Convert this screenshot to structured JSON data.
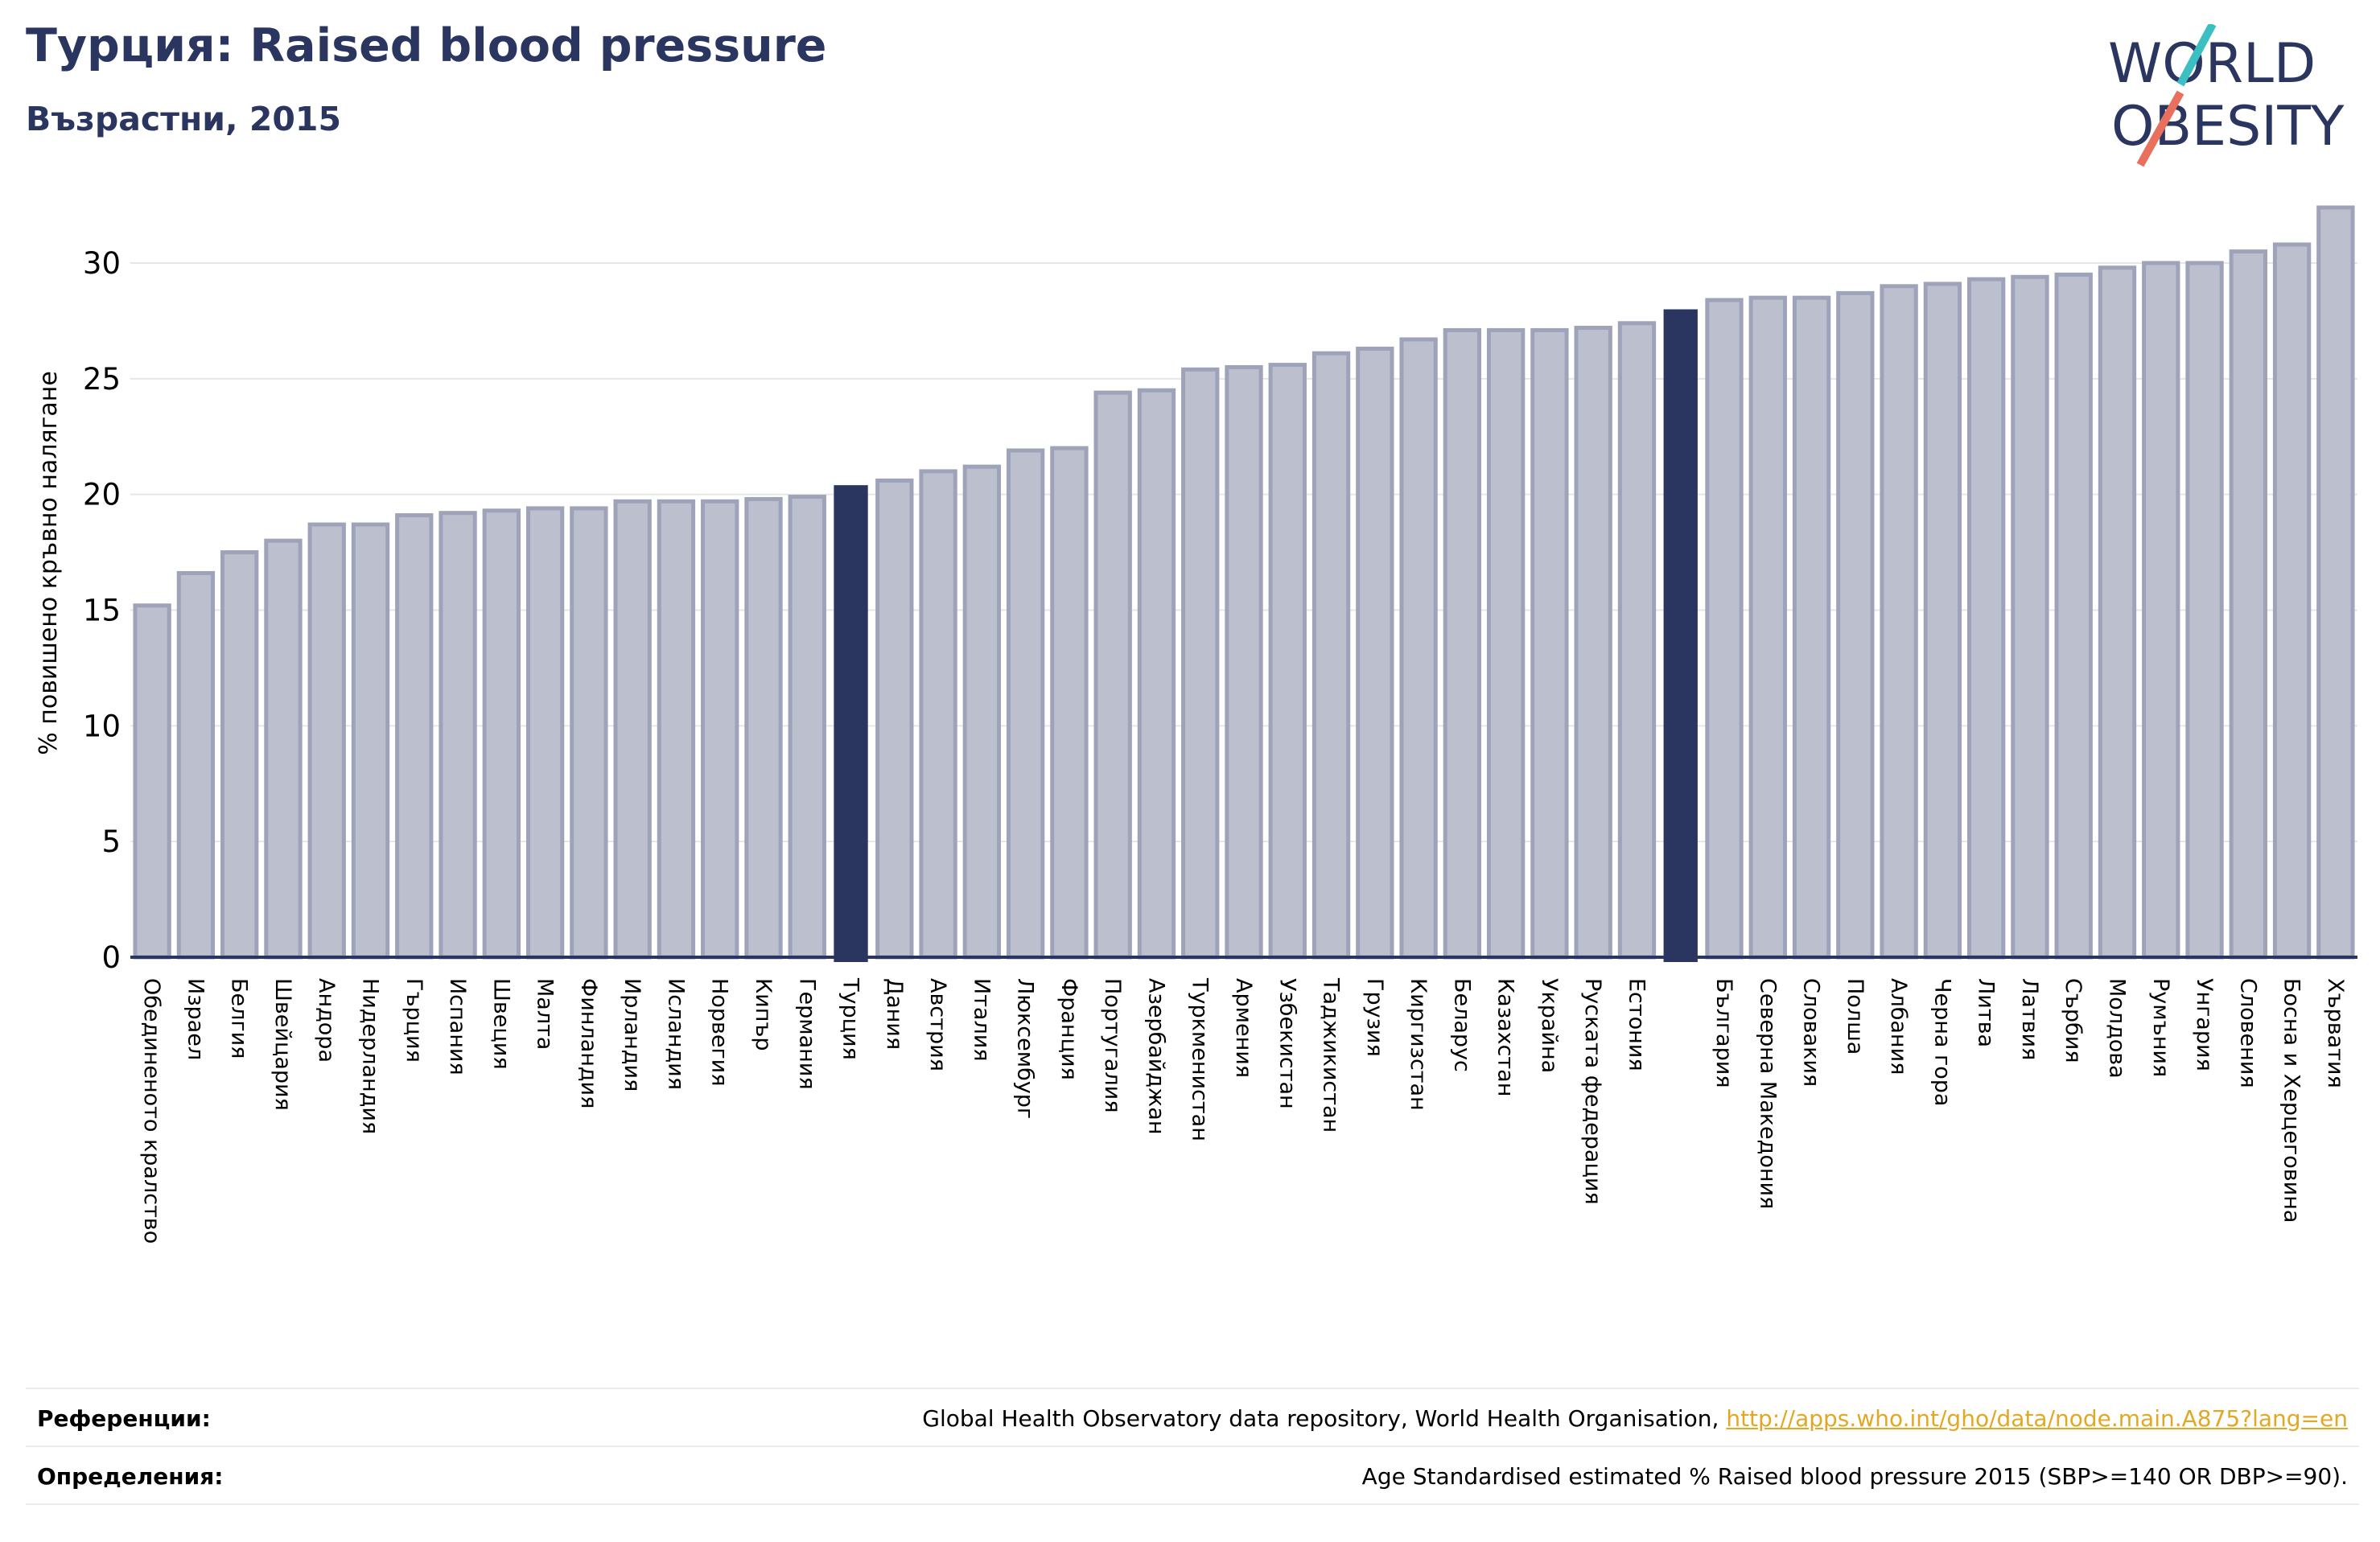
{
  "header": {
    "title": "Турция: Raised blood pressure",
    "subtitle": "Възрастни, 2015"
  },
  "logo": {
    "line1": "WORLD",
    "line2": "OBESITY",
    "colors": {
      "text": "#2b3660",
      "teal": "#3bbfc0",
      "coral": "#e8705d"
    }
  },
  "colors": {
    "bar_fill": "#bcbfcd",
    "bar_edge": "#9ea3b9",
    "highlight": "#2b3660",
    "axis": "#2b3660",
    "grid": "#e6e6e6",
    "link": "#e3a823"
  },
  "chart_data": {
    "type": "bar",
    "title": "Турция: Raised blood pressure",
    "subtitle": "Възрастни, 2015",
    "xlabel": "",
    "ylabel": "% повишено кръвно налягане",
    "ylim": [
      0,
      33
    ],
    "yticks": [
      0,
      5,
      10,
      15,
      20,
      25,
      30
    ],
    "grid": true,
    "categories": [
      "Обединеното кралство",
      "Израел",
      "Белгия",
      "Швейцария",
      "Андора",
      "Нидерландия",
      "Гърция",
      "Испания",
      "Швеция",
      "Малта",
      "Финландия",
      "Ирландия",
      "Исландия",
      "Норвегия",
      "Кипър",
      "Германия",
      "Турция",
      "Дания",
      "Австрия",
      "Италия",
      "Люксембург",
      "Франция",
      "Португалия",
      "Азербайджан",
      "Туркменистан",
      "Армения",
      "Узбекистан",
      "Таджикистан",
      "Грузия",
      "Киргизстан",
      "Беларус",
      "Казахстан",
      "Украйна",
      "Руската федерация",
      "Естония",
      "",
      "България",
      "Северна Македония",
      "Словакия",
      "Полша",
      "Албания",
      "Черна гора",
      "Литва",
      "Латвия",
      "Сърбия",
      "Молдова",
      "Румъния",
      "Унгария",
      "Словения",
      "Босна и Херцеговина",
      "Хърватия"
    ],
    "values": [
      15.2,
      16.6,
      17.5,
      18.0,
      18.7,
      18.7,
      19.1,
      19.2,
      19.3,
      19.4,
      19.4,
      19.7,
      19.7,
      19.7,
      19.8,
      19.9,
      20.4,
      20.6,
      21.0,
      21.2,
      21.9,
      22.0,
      24.4,
      24.5,
      25.4,
      25.5,
      25.6,
      26.1,
      26.3,
      26.7,
      27.1,
      27.1,
      27.1,
      27.2,
      27.4,
      28.0,
      28.4,
      28.5,
      28.5,
      28.7,
      29.0,
      29.1,
      29.3,
      29.4,
      29.5,
      29.8,
      30.0,
      30.0,
      30.5,
      30.8,
      32.4
    ],
    "highlighted": [
      "Турция",
      ""
    ]
  },
  "footer": {
    "references_label": "Референции:",
    "references_text": "Global Health Observatory data repository, World Health Organisation, ",
    "references_link": "http://apps.who.int/gho/data/node.main.A875?lang=en",
    "definitions_label": "Определения:",
    "definitions_text": "Age Standardised estimated % Raised blood pressure 2015 (SBP>=140 OR DBP>=90)."
  }
}
